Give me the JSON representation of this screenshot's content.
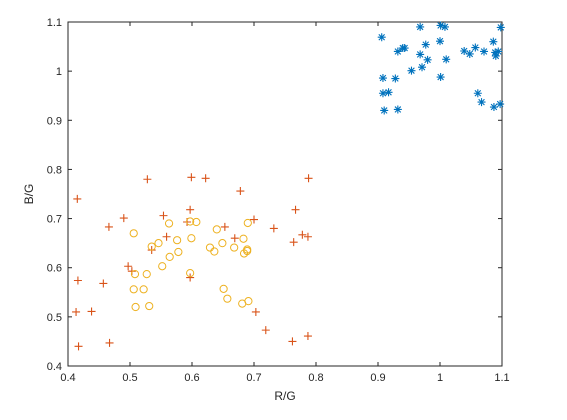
{
  "chart_data": {
    "type": "scatter",
    "title": "",
    "xlabel": "R/G",
    "ylabel": "B/G",
    "xlim": [
      0.4,
      1.1
    ],
    "ylim": [
      0.4,
      1.1
    ],
    "xticks": [
      "0.4",
      "0.5",
      "0.6",
      "0.7",
      "0.8",
      "0.9",
      "1",
      "1.1"
    ],
    "yticks": [
      "0.4",
      "0.5",
      "0.6",
      "0.7",
      "0.8",
      "0.9",
      "1",
      "1.1"
    ],
    "grid": false,
    "legend": "none",
    "series": [
      {
        "marker": "asterisk",
        "color": "#0072BD",
        "points": [
          [
            0.906,
            1.069
          ],
          [
            0.968,
            1.09
          ],
          [
            1.001,
            1.093
          ],
          [
            1.008,
            1.09
          ],
          [
            1.098,
            1.089
          ],
          [
            0.932,
            1.04
          ],
          [
            0.94,
            1.047
          ],
          [
            0.943,
            1.047
          ],
          [
            0.968,
            1.034
          ],
          [
            0.977,
            1.054
          ],
          [
            1.0,
            1.061
          ],
          [
            1.039,
            1.041
          ],
          [
            1.048,
            1.035
          ],
          [
            1.057,
            1.048
          ],
          [
            1.071,
            1.04
          ],
          [
            1.086,
            1.06
          ],
          [
            1.089,
            1.038
          ],
          [
            1.094,
            1.04
          ],
          [
            1.09,
            1.031
          ],
          [
            0.98,
            1.023
          ],
          [
            0.954,
            1.001
          ],
          [
            0.971,
            1.008
          ],
          [
            0.908,
            0.986
          ],
          [
            0.928,
            0.985
          ],
          [
            1.001,
            0.988
          ],
          [
            1.01,
            1.024
          ],
          [
            0.908,
            0.955
          ],
          [
            0.917,
            0.957
          ],
          [
            1.061,
            0.955
          ],
          [
            1.067,
            0.937
          ],
          [
            1.087,
            0.927
          ],
          [
            1.097,
            0.933
          ],
          [
            0.91,
            0.92
          ],
          [
            0.932,
            0.922
          ]
        ]
      },
      {
        "marker": "plus",
        "color": "#D95319",
        "points": [
          [
            0.415,
            0.74
          ],
          [
            0.528,
            0.78
          ],
          [
            0.599,
            0.784
          ],
          [
            0.622,
            0.782
          ],
          [
            0.788,
            0.782
          ],
          [
            0.678,
            0.756
          ],
          [
            0.49,
            0.701
          ],
          [
            0.554,
            0.706
          ],
          [
            0.597,
            0.718
          ],
          [
            0.767,
            0.718
          ],
          [
            0.466,
            0.683
          ],
          [
            0.592,
            0.693
          ],
          [
            0.7,
            0.698
          ],
          [
            0.732,
            0.68
          ],
          [
            0.653,
            0.683
          ],
          [
            0.778,
            0.667
          ],
          [
            0.787,
            0.663
          ],
          [
            0.559,
            0.663
          ],
          [
            0.669,
            0.66
          ],
          [
            0.535,
            0.636
          ],
          [
            0.764,
            0.652
          ],
          [
            0.497,
            0.603
          ],
          [
            0.503,
            0.593
          ],
          [
            0.597,
            0.58
          ],
          [
            0.416,
            0.574
          ],
          [
            0.457,
            0.568
          ],
          [
            0.413,
            0.51
          ],
          [
            0.438,
            0.511
          ],
          [
            0.703,
            0.51
          ],
          [
            0.719,
            0.473
          ],
          [
            0.417,
            0.44
          ],
          [
            0.467,
            0.447
          ],
          [
            0.762,
            0.45
          ],
          [
            0.787,
            0.461
          ]
        ]
      },
      {
        "marker": "circle",
        "color": "#EDB120",
        "points": [
          [
            0.506,
            0.67
          ],
          [
            0.563,
            0.69
          ],
          [
            0.597,
            0.694
          ],
          [
            0.607,
            0.693
          ],
          [
            0.64,
            0.678
          ],
          [
            0.69,
            0.691
          ],
          [
            0.546,
            0.65
          ],
          [
            0.535,
            0.643
          ],
          [
            0.576,
            0.656
          ],
          [
            0.599,
            0.66
          ],
          [
            0.629,
            0.641
          ],
          [
            0.636,
            0.633
          ],
          [
            0.649,
            0.65
          ],
          [
            0.668,
            0.641
          ],
          [
            0.683,
            0.659
          ],
          [
            0.684,
            0.629
          ],
          [
            0.689,
            0.634
          ],
          [
            0.689,
            0.637
          ],
          [
            0.564,
            0.622
          ],
          [
            0.578,
            0.632
          ],
          [
            0.508,
            0.587
          ],
          [
            0.527,
            0.587
          ],
          [
            0.552,
            0.603
          ],
          [
            0.597,
            0.589
          ],
          [
            0.506,
            0.556
          ],
          [
            0.522,
            0.556
          ],
          [
            0.651,
            0.557
          ],
          [
            0.657,
            0.537
          ],
          [
            0.681,
            0.527
          ],
          [
            0.691,
            0.532
          ],
          [
            0.509,
            0.52
          ],
          [
            0.531,
            0.522
          ]
        ]
      }
    ]
  }
}
